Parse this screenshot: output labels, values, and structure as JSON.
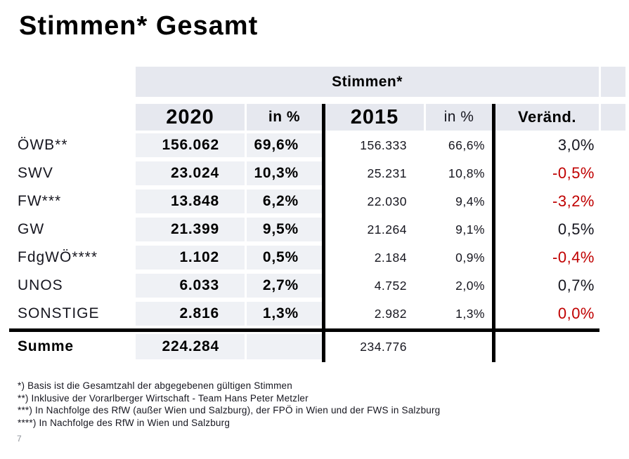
{
  "slide": {
    "title": "Stimmen* Gesamt",
    "page_number": "7"
  },
  "table": {
    "group_header": "Stimmen*",
    "columns": {
      "year_2020": "2020",
      "pct_2020": "in %",
      "year_2015": "2015",
      "pct_2015": "in %",
      "change": "Veränd."
    },
    "rows": [
      {
        "label": "ÖWB**",
        "v2020": "156.062",
        "p2020": "69,6%",
        "v2015": "156.333",
        "p2015": "66,6%",
        "change": "3,0%",
        "change_red": false
      },
      {
        "label": "SWV",
        "v2020": "23.024",
        "p2020": "10,3%",
        "v2015": "25.231",
        "p2015": "10,8%",
        "change": "-0,5%",
        "change_red": true
      },
      {
        "label": "FW***",
        "v2020": "13.848",
        "p2020": "6,2%",
        "v2015": "22.030",
        "p2015": "9,4%",
        "change": "-3,2%",
        "change_red": true
      },
      {
        "label": "GW",
        "v2020": "21.399",
        "p2020": "9,5%",
        "v2015": "21.264",
        "p2015": "9,1%",
        "change": "0,5%",
        "change_red": false
      },
      {
        "label": "FdgWÖ****",
        "v2020": "1.102",
        "p2020": "0,5%",
        "v2015": "2.184",
        "p2015": "0,9%",
        "change": "-0,4%",
        "change_red": true
      },
      {
        "label": "UNOS",
        "v2020": "6.033",
        "p2020": "2,7%",
        "v2015": "4.752",
        "p2015": "2,0%",
        "change": "0,7%",
        "change_red": false
      },
      {
        "label": "SONSTIGE",
        "v2020": "2.816",
        "p2020": "1,3%",
        "v2015": "2.982",
        "p2015": "1,3%",
        "change": "0,0%",
        "change_red": true
      }
    ],
    "summary": {
      "label": "Summe",
      "v2020": "224.284",
      "v2015": "234.776"
    }
  },
  "footnotes": [
    "*) Basis ist die Gesamtzahl der abgegebenen gültigen Stimmen",
    "**) Inklusive der Vorarlberger Wirtschaft - Team Hans Peter Metzler",
    "***) In Nachfolge des RfW (außer Wien und Salzburg), der FPÖ in Wien und der FWS in Salzburg",
    "****) In Nachfolge des RfW in Wien und Salzburg"
  ],
  "colors": {
    "accent_red": "#C00000",
    "header_gray": "#E6E8EF",
    "cell_gray": "#EFF1F5"
  }
}
